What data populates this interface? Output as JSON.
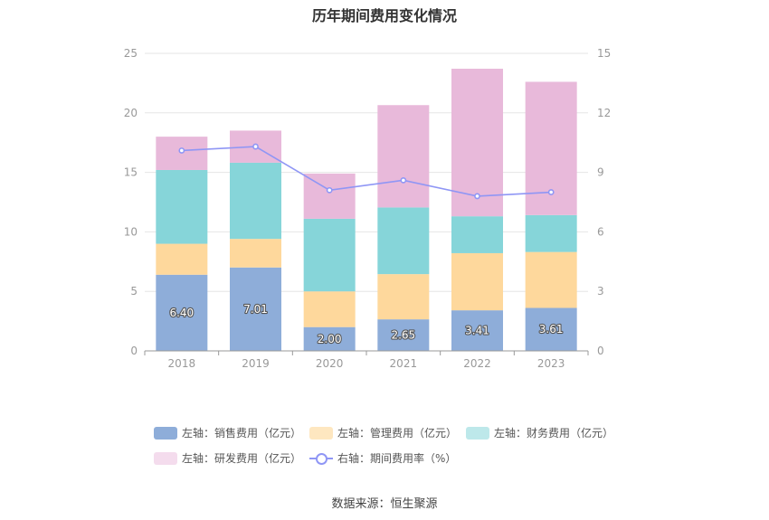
{
  "title": "历年期间费用变化情况",
  "source_text": "数据来源：恒生聚源",
  "chart_data": {
    "type": "bar",
    "stacked": true,
    "categories": [
      "2018",
      "2019",
      "2020",
      "2021",
      "2022",
      "2023"
    ],
    "ylim_left": [
      0,
      25
    ],
    "yticks_left": [
      0,
      5,
      10,
      15,
      20,
      25
    ],
    "ylim_right": [
      0,
      15
    ],
    "yticks_right": [
      0,
      3,
      6,
      9,
      12,
      15
    ],
    "grid": true,
    "legend_position": "bottom",
    "series": [
      {
        "name": "左轴：销售费用（亿元）",
        "axis": "left",
        "color": "#8eadd9",
        "values": [
          6.4,
          7.01,
          2.0,
          2.65,
          3.41,
          3.61
        ],
        "labels": [
          "6.40",
          "7.01",
          "2.00",
          "2.65",
          "3.41",
          "3.61"
        ]
      },
      {
        "name": "左轴：管理费用（亿元）",
        "axis": "left",
        "color": "#fed89c",
        "values": [
          2.6,
          2.4,
          3.0,
          3.8,
          4.8,
          4.7
        ]
      },
      {
        "name": "左轴：财务费用（亿元）",
        "axis": "left",
        "color": "#86d5d9",
        "values": [
          6.2,
          6.4,
          6.1,
          5.6,
          3.1,
          3.1
        ]
      },
      {
        "name": "左轴：研发费用（亿元）",
        "axis": "left",
        "color": "#e8b9da",
        "values": [
          2.8,
          2.7,
          3.8,
          8.6,
          12.4,
          11.2
        ]
      },
      {
        "name": "右轴：期间费用率（%）",
        "axis": "right",
        "type": "line",
        "color": "#8f96f5",
        "values": [
          10.1,
          10.3,
          8.1,
          8.6,
          7.8,
          8.0
        ]
      }
    ]
  }
}
